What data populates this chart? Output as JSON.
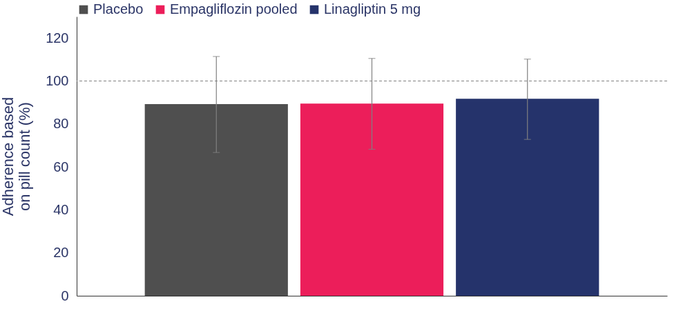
{
  "chart_data": {
    "type": "bar",
    "ylabel": "Adherence based on pill count (%)",
    "categories": [
      null
    ],
    "series": [
      {
        "name": "Placebo",
        "color": "#4f4f4f",
        "values": [
          89.2
        ],
        "errors": [
          [
            66.7,
            111.4
          ]
        ]
      },
      {
        "name": "Empagliflozin pooled",
        "color": "#ec1e5a",
        "values": [
          89.5
        ],
        "errors": [
          [
            68.2,
            110.5
          ]
        ]
      },
      {
        "name": "Linagliptin 5 mg",
        "color": "#25336b",
        "values": [
          91.7
        ],
        "errors": [
          [
            72.8,
            110.2
          ]
        ]
      }
    ],
    "ylim": [
      0,
      130
    ],
    "yticks": [
      0,
      20,
      40,
      60,
      80,
      100,
      120
    ],
    "grid": false,
    "legend": "top",
    "ref_lines": [
      {
        "axis": "y",
        "value": 100,
        "color": "#808080",
        "line_style": "dashed"
      }
    ]
  }
}
